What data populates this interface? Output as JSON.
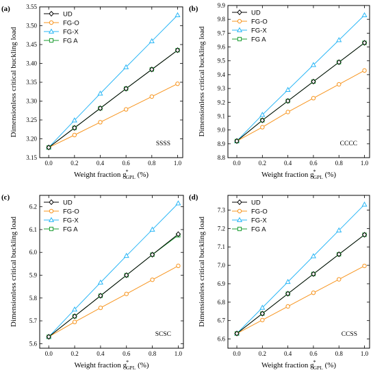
{
  "chart_data": [
    {
      "type": "line",
      "panel_label": "(a)",
      "case_label": "SSSS",
      "xlabel_main": "Weight fraction g",
      "xlabel_sup": "*",
      "xlabel_sub": "GPL",
      "xlabel_unit": " (%)",
      "ylabel": "Dimensionless critical buckling load",
      "xlim": [
        -0.07,
        1.04
      ],
      "ylim": [
        3.15,
        3.55
      ],
      "x_ticks": [
        0.0,
        0.2,
        0.4,
        0.6,
        0.8,
        1.0
      ],
      "x_tick_labels": [
        "0.0",
        "0.2",
        "0.4",
        "0.6",
        "0.8",
        "1.0"
      ],
      "y_ticks": [
        3.15,
        3.2,
        3.25,
        3.3,
        3.35,
        3.4,
        3.45,
        3.5,
        3.55
      ],
      "y_tick_labels": [
        "3.15",
        "3.20",
        "3.25",
        "3.30",
        "3.35",
        "3.40",
        "3.45",
        "3.50",
        "3.55"
      ],
      "grid": false,
      "legend_position": "top-left",
      "x": [
        0.0,
        0.2,
        0.4,
        0.6,
        0.8,
        1.0
      ],
      "series": [
        {
          "name": "UD",
          "color": "#000000",
          "marker": "diamond",
          "values": [
            3.177,
            3.229,
            3.281,
            3.333,
            3.384,
            3.435
          ]
        },
        {
          "name": "FG-O",
          "color": "#f7941d",
          "marker": "circle",
          "values": [
            3.177,
            3.21,
            3.244,
            3.278,
            3.312,
            3.346
          ]
        },
        {
          "name": "FG-X",
          "color": "#29b6f6",
          "marker": "triangle",
          "values": [
            3.177,
            3.249,
            3.32,
            3.39,
            3.459,
            3.528
          ]
        },
        {
          "name": "FG A",
          "color": "#1a9b2f",
          "marker": "square",
          "values": [
            3.177,
            3.229,
            3.281,
            3.333,
            3.384,
            3.435
          ]
        }
      ]
    },
    {
      "type": "line",
      "panel_label": "(b)",
      "case_label": "CCCC",
      "xlabel_main": "Weight fraction g",
      "xlabel_sup": "*",
      "xlabel_sub": "GPL",
      "xlabel_unit": " (%)",
      "ylabel": "Dimensionless critical buckling load",
      "xlim": [
        -0.07,
        1.04
      ],
      "ylim": [
        8.8,
        9.9
      ],
      "x_ticks": [
        0.0,
        0.2,
        0.4,
        0.6,
        0.8,
        1.0
      ],
      "x_tick_labels": [
        "0.0",
        "0.2",
        "0.4",
        "0.6",
        "0.8",
        "1.0"
      ],
      "y_ticks": [
        8.8,
        8.9,
        9.0,
        9.1,
        9.2,
        9.3,
        9.4,
        9.5,
        9.6,
        9.7,
        9.8,
        9.9
      ],
      "y_tick_labels": [
        "8.8",
        "8.9",
        "9.0",
        "9.1",
        "9.2",
        "9.3",
        "9.4",
        "9.5",
        "9.6",
        "9.7",
        "9.8",
        "9.9"
      ],
      "grid": false,
      "legend_position": "top-left",
      "x": [
        0.0,
        0.2,
        0.4,
        0.6,
        0.8,
        1.0
      ],
      "series": [
        {
          "name": "UD",
          "color": "#000000",
          "marker": "diamond",
          "values": [
            8.92,
            9.07,
            9.21,
            9.35,
            9.49,
            9.63
          ]
        },
        {
          "name": "FG-O",
          "color": "#f7941d",
          "marker": "circle",
          "values": [
            8.92,
            9.02,
            9.13,
            9.23,
            9.33,
            9.43
          ]
        },
        {
          "name": "FG-X",
          "color": "#29b6f6",
          "marker": "triangle",
          "values": [
            8.92,
            9.11,
            9.29,
            9.47,
            9.65,
            9.83
          ]
        },
        {
          "name": "FG A",
          "color": "#1a9b2f",
          "marker": "square",
          "values": [
            8.92,
            9.07,
            9.21,
            9.35,
            9.49,
            9.63
          ]
        }
      ]
    },
    {
      "type": "line",
      "panel_label": "(c)",
      "case_label": "SCSC",
      "xlabel_main": "Weight fraction g",
      "xlabel_sup": "*",
      "xlabel_sub": "GPL",
      "xlabel_unit": " (%)",
      "ylabel": "Dimensionless critical buckling load",
      "xlim": [
        -0.07,
        1.04
      ],
      "ylim": [
        5.58,
        6.25
      ],
      "x_ticks": [
        0.0,
        0.2,
        0.4,
        0.6,
        0.8,
        1.0
      ],
      "x_tick_labels": [
        "0.0",
        "0.2",
        "0.4",
        "0.6",
        "0.8",
        "1.0"
      ],
      "y_ticks": [
        5.6,
        5.7,
        5.8,
        5.9,
        6.0,
        6.1,
        6.2
      ],
      "y_tick_labels": [
        "5.6",
        "5.7",
        "5.8",
        "5.9",
        "6.0",
        "6.1",
        "6.2"
      ],
      "grid": false,
      "legend_position": "top-left",
      "x": [
        0.0,
        0.2,
        0.4,
        0.6,
        0.8,
        1.0
      ],
      "series": [
        {
          "name": "UD",
          "color": "#000000",
          "marker": "diamond",
          "values": [
            5.63,
            5.72,
            5.81,
            5.9,
            5.99,
            6.08
          ]
        },
        {
          "name": "FG-O",
          "color": "#f7941d",
          "marker": "circle",
          "values": [
            5.63,
            5.695,
            5.757,
            5.818,
            5.88,
            5.941
          ]
        },
        {
          "name": "FG-X",
          "color": "#29b6f6",
          "marker": "triangle",
          "values": [
            5.63,
            5.75,
            5.868,
            5.985,
            6.1,
            6.215
          ]
        },
        {
          "name": "FG A",
          "color": "#1a9b2f",
          "marker": "square",
          "values": [
            5.63,
            5.72,
            5.81,
            5.9,
            5.99,
            6.075
          ]
        }
      ]
    },
    {
      "type": "line",
      "panel_label": "(d)",
      "case_label": "CCSS",
      "xlabel_main": "Weight fraction g",
      "xlabel_sup": "*",
      "xlabel_sub": "GPL",
      "xlabel_unit": " (%)",
      "ylabel": "Dimensionless critical buckling load",
      "xlim": [
        -0.07,
        1.04
      ],
      "ylim": [
        6.55,
        7.38
      ],
      "x_ticks": [
        0.0,
        0.2,
        0.4,
        0.6,
        0.8,
        1.0
      ],
      "x_tick_labels": [
        "0.0",
        "0.2",
        "0.4",
        "0.6",
        "0.8",
        "1.0"
      ],
      "y_ticks": [
        6.6,
        6.7,
        6.8,
        6.9,
        7.0,
        7.1,
        7.2,
        7.3
      ],
      "y_tick_labels": [
        "6.6",
        "6.7",
        "6.8",
        "6.9",
        "7.0",
        "7.1",
        "7.2",
        "7.3"
      ],
      "grid": false,
      "legend_position": "top-left",
      "x": [
        0.0,
        0.2,
        0.4,
        0.6,
        0.8,
        1.0
      ],
      "series": [
        {
          "name": "UD",
          "color": "#000000",
          "marker": "diamond",
          "values": [
            6.63,
            6.738,
            6.846,
            6.953,
            7.06,
            7.166
          ]
        },
        {
          "name": "FG-O",
          "color": "#f7941d",
          "marker": "circle",
          "values": [
            6.63,
            6.703,
            6.777,
            6.851,
            6.924,
            6.997
          ]
        },
        {
          "name": "FG-X",
          "color": "#29b6f6",
          "marker": "triangle",
          "values": [
            6.63,
            6.77,
            6.91,
            7.05,
            7.19,
            7.33
          ]
        },
        {
          "name": "FG A",
          "color": "#1a9b2f",
          "marker": "square",
          "values": [
            6.63,
            6.738,
            6.846,
            6.953,
            7.06,
            7.166
          ]
        }
      ]
    }
  ]
}
